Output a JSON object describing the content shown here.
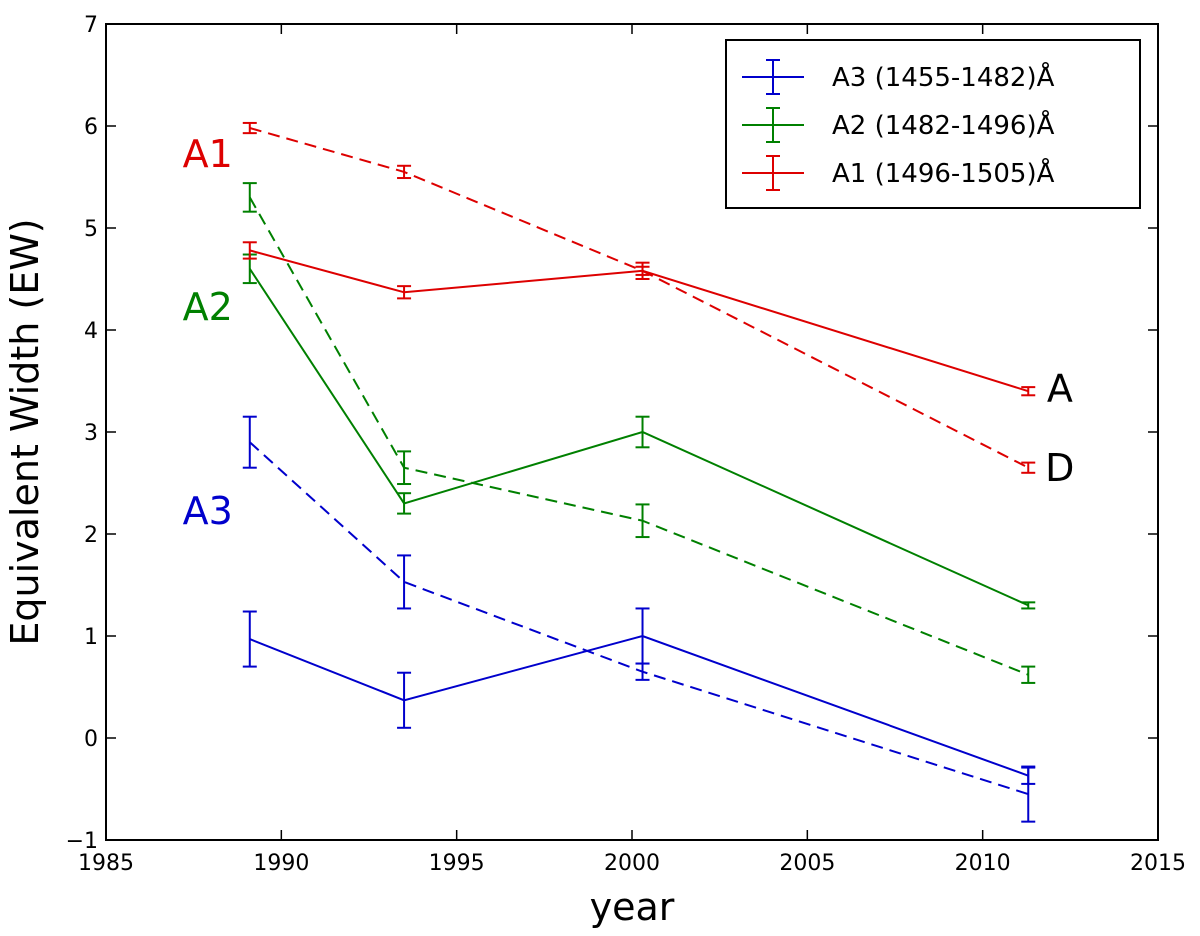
{
  "chart_data": {
    "type": "line",
    "xlabel": "year",
    "ylabel": "Equivalent Width (EW)",
    "xlim": [
      1985,
      2015
    ],
    "ylim": [
      -1,
      7
    ],
    "xticks": [
      1985,
      1990,
      1995,
      2000,
      2005,
      2010,
      2015
    ],
    "yticks": [
      -1,
      0,
      1,
      2,
      3,
      4,
      5,
      6,
      7
    ],
    "xtick_labels": [
      "1985",
      "1990",
      "1995",
      "2000",
      "2005",
      "2010",
      "2015"
    ],
    "ytick_labels": [
      "−1",
      "0",
      "1",
      "2",
      "3",
      "4",
      "5",
      "6",
      "7"
    ],
    "grid": false,
    "legend_position": "top-right",
    "legend": [
      {
        "label": "A3 (1455-1482)Å",
        "color": "#0000cc"
      },
      {
        "label": "A2 (1482-1496)Å",
        "color": "#008000"
      },
      {
        "label": "A1 (1496-1505)Å",
        "color": "#dd0000"
      }
    ],
    "x": [
      1989.1,
      1993.5,
      2000.3,
      2011.3
    ],
    "series": [
      {
        "key": "A3",
        "style": "solid",
        "color": "#0000cc",
        "y": [
          0.97,
          0.37,
          1.0,
          -0.37
        ],
        "err": [
          0.27,
          0.27,
          0.27,
          0.08
        ]
      },
      {
        "key": "A3",
        "style": "dashed",
        "color": "#0000cc",
        "y": [
          2.9,
          1.53,
          0.65,
          -0.55
        ],
        "err": [
          0.25,
          0.26,
          0.08,
          0.27
        ]
      },
      {
        "key": "A2",
        "style": "solid",
        "color": "#008000",
        "y": [
          4.6,
          2.3,
          3.0,
          1.3
        ],
        "err": [
          0.14,
          0.1,
          0.15,
          0.03
        ]
      },
      {
        "key": "A2",
        "style": "dashed",
        "color": "#008000",
        "y": [
          5.3,
          2.65,
          2.13,
          0.62
        ],
        "err": [
          0.14,
          0.16,
          0.16,
          0.08
        ]
      },
      {
        "key": "A1",
        "style": "solid",
        "color": "#dd0000",
        "y": [
          4.78,
          4.37,
          4.58,
          3.4
        ],
        "err": [
          0.08,
          0.06,
          0.08,
          0.04
        ]
      },
      {
        "key": "A1",
        "style": "dashed",
        "color": "#dd0000",
        "y": [
          5.98,
          5.55,
          4.58,
          2.65
        ],
        "err": [
          0.05,
          0.06,
          0.04,
          0.05
        ]
      }
    ],
    "annotations": [
      {
        "text": "A1",
        "color": "#dd0000",
        "x": 1987.9,
        "y": 5.6
      },
      {
        "text": "A2",
        "color": "#008000",
        "x": 1987.9,
        "y": 4.1
      },
      {
        "text": "A3",
        "color": "#0000cc",
        "x": 1987.9,
        "y": 2.1
      },
      {
        "text": "A",
        "color": "#000000",
        "x": 2012.2,
        "y": 3.3
      },
      {
        "text": "D",
        "color": "#000000",
        "x": 2012.2,
        "y": 2.52
      }
    ]
  }
}
